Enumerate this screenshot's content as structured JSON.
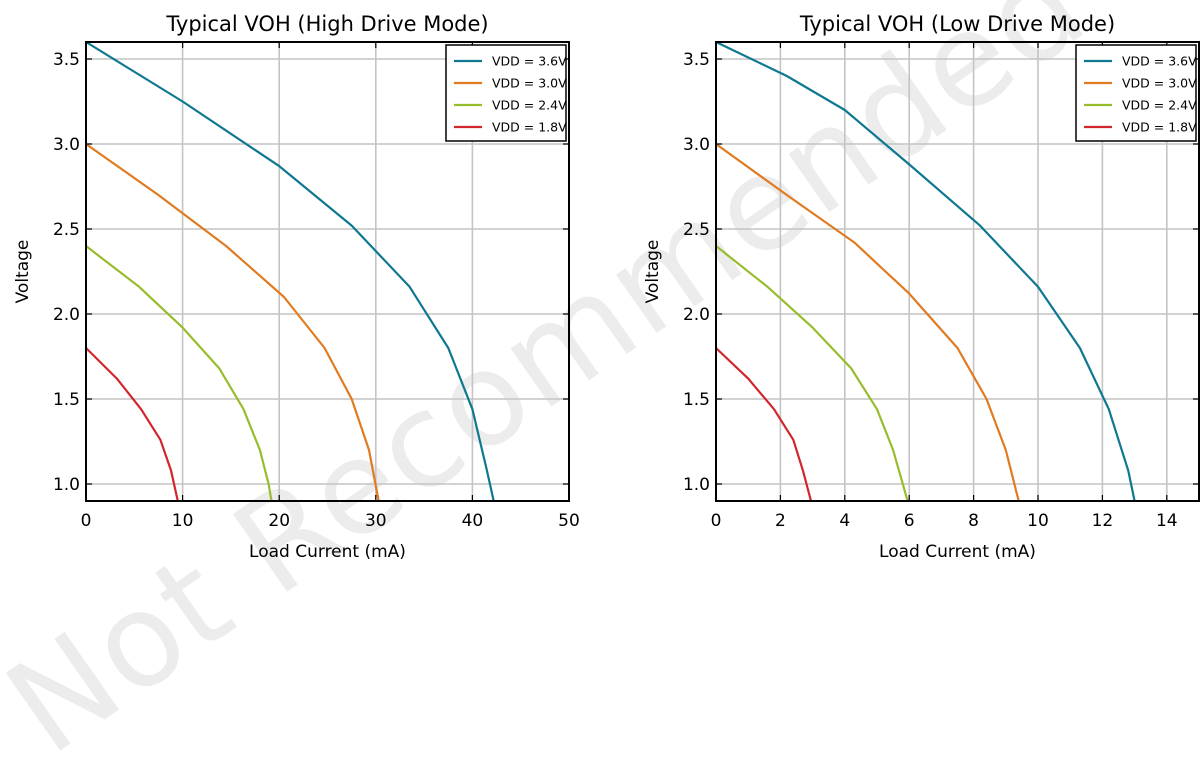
{
  "watermark": "Not Recommended for",
  "chart_data": [
    {
      "type": "line",
      "title": "Typical VOH (High Drive Mode)",
      "xlabel": "Load Current (mA)",
      "ylabel": "Voltage",
      "xlim": [
        0,
        50
      ],
      "ylim": [
        0.9,
        3.6
      ],
      "xticks": [
        0,
        10,
        20,
        30,
        40,
        50
      ],
      "yticks": [
        1.0,
        1.5,
        2.0,
        2.5,
        3.0,
        3.5
      ],
      "xtick_labels": [
        "0",
        "10",
        "20",
        "30",
        "40",
        "50"
      ],
      "ytick_labels": [
        "1.0",
        "1.5",
        "2.0",
        "2.5",
        "3.0",
        "3.5"
      ],
      "grid": true,
      "legend": "top-right",
      "series": [
        {
          "name": "VDD = 3.6V",
          "color": "#0f7891",
          "x": [
            0,
            10,
            20,
            27.5,
            33.5,
            37.5,
            40,
            41.5,
            42.2
          ],
          "y": [
            3.6,
            3.25,
            2.87,
            2.52,
            2.16,
            1.8,
            1.44,
            1.08,
            0.9
          ]
        },
        {
          "name": "VDD = 3.0V",
          "color": "#e07b22",
          "x": [
            0,
            7.5,
            14.5,
            20.5,
            24.7,
            27.5,
            29.3,
            30.3
          ],
          "y": [
            3.0,
            2.7,
            2.4,
            2.1,
            1.8,
            1.5,
            1.2,
            0.9
          ]
        },
        {
          "name": "VDD = 2.4V",
          "color": "#97bd2d",
          "x": [
            0,
            5.5,
            10,
            13.8,
            16.3,
            18,
            18.9,
            19.2
          ],
          "y": [
            2.4,
            2.16,
            1.92,
            1.68,
            1.44,
            1.2,
            1.0,
            0.9
          ]
        },
        {
          "name": "VDD = 1.8V",
          "color": "#d0262c",
          "x": [
            0,
            3.2,
            5.7,
            7.7,
            8.8,
            9.5
          ],
          "y": [
            1.8,
            1.62,
            1.44,
            1.26,
            1.08,
            0.9
          ]
        }
      ]
    },
    {
      "type": "line",
      "title": "Typical VOH (Low Drive Mode)",
      "xlabel": "Load Current (mA)",
      "ylabel": "Voltage",
      "xlim": [
        0,
        15
      ],
      "ylim": [
        0.9,
        3.6
      ],
      "xticks": [
        0,
        2,
        4,
        6,
        8,
        10,
        12,
        14
      ],
      "yticks": [
        1.0,
        1.5,
        2.0,
        2.5,
        3.0,
        3.5
      ],
      "xtick_labels": [
        "0",
        "2",
        "4",
        "6",
        "8",
        "10",
        "12",
        "14"
      ],
      "ytick_labels": [
        "1.0",
        "1.5",
        "2.0",
        "2.5",
        "3.0",
        "3.5"
      ],
      "grid": true,
      "legend": "top-right",
      "series": [
        {
          "name": "VDD = 3.6V",
          "color": "#0f7891",
          "x": [
            0,
            2.2,
            4,
            6,
            8.2,
            10,
            11.3,
            12.2,
            12.8,
            13
          ],
          "y": [
            3.6,
            3.4,
            3.2,
            2.88,
            2.52,
            2.16,
            1.8,
            1.44,
            1.08,
            0.9
          ]
        },
        {
          "name": "VDD = 3.0V",
          "color": "#e07b22",
          "x": [
            0,
            2.2,
            4.3,
            6,
            7.5,
            8.4,
            9.0,
            9.4
          ],
          "y": [
            3.0,
            2.7,
            2.42,
            2.12,
            1.8,
            1.5,
            1.2,
            0.9
          ]
        },
        {
          "name": "VDD = 2.4V",
          "color": "#97bd2d",
          "x": [
            0,
            1.6,
            3.0,
            4.2,
            5.0,
            5.5,
            5.8,
            5.95
          ],
          "y": [
            2.4,
            2.16,
            1.92,
            1.68,
            1.44,
            1.2,
            1.0,
            0.9
          ]
        },
        {
          "name": "VDD = 1.8V",
          "color": "#d0262c",
          "x": [
            0,
            1.0,
            1.8,
            2.4,
            2.7,
            2.95
          ],
          "y": [
            1.8,
            1.62,
            1.44,
            1.26,
            1.08,
            0.9
          ]
        }
      ]
    }
  ]
}
